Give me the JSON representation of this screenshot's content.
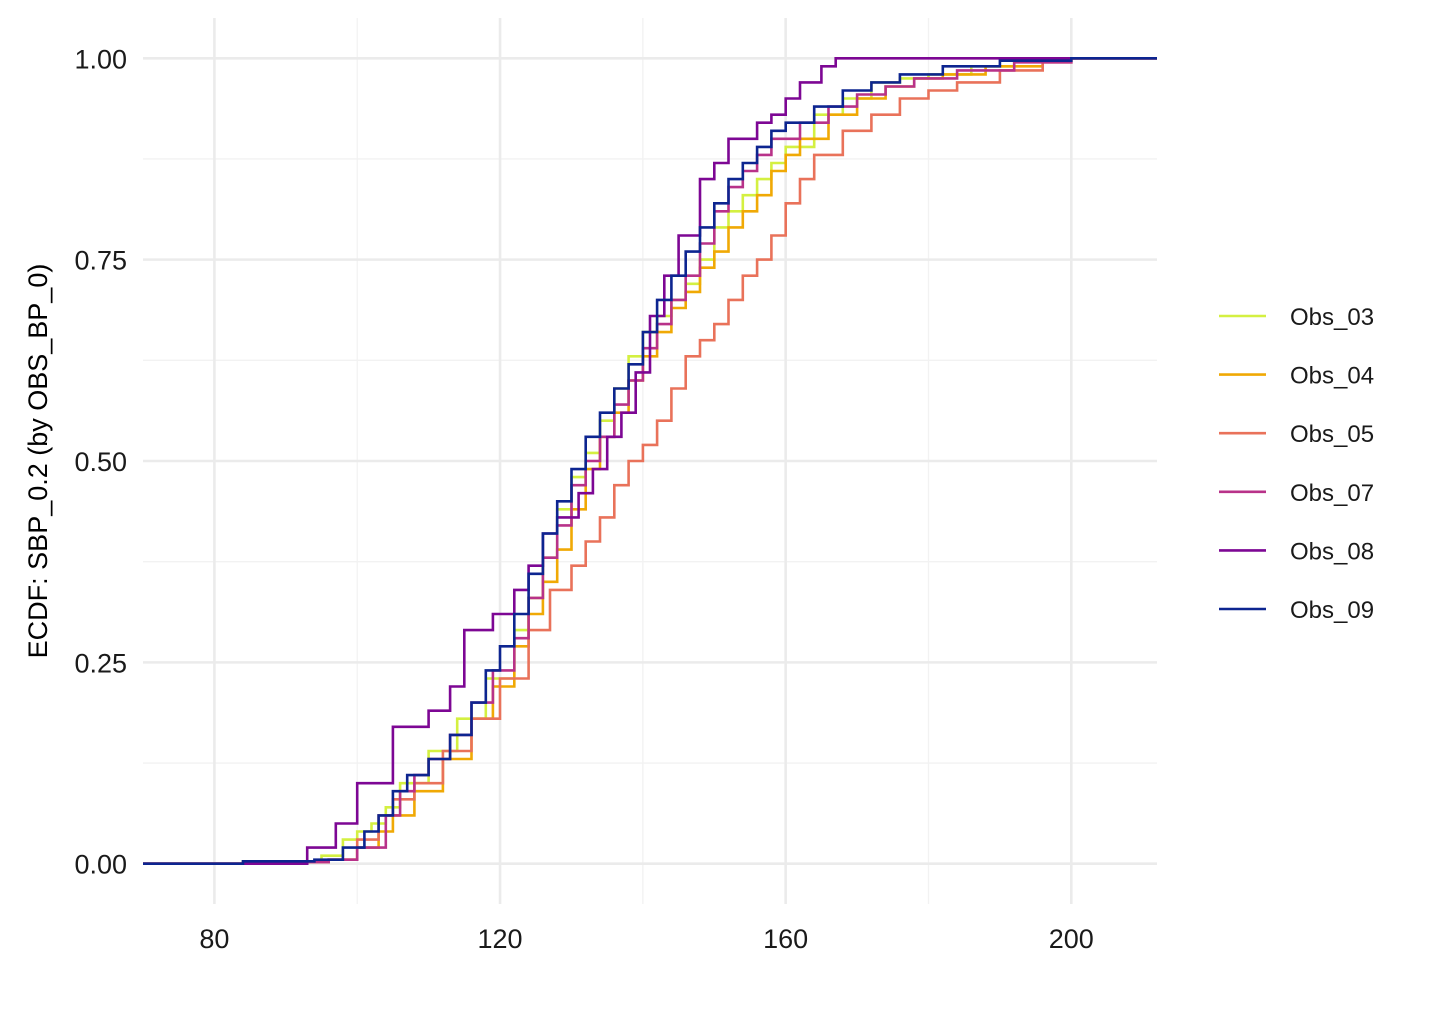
{
  "chart_data": {
    "type": "line",
    "step": true,
    "title": "",
    "xlabel": "",
    "ylabel": "ECDF: SBP_0.2 (by OBS_BP_0)",
    "xlim": [
      70,
      212
    ],
    "ylim": [
      -0.05,
      1.05
    ],
    "x_ticks": [
      80,
      120,
      160,
      200
    ],
    "y_ticks": [
      0,
      0.25,
      0.5,
      0.75,
      1
    ],
    "x_tick_labels": [
      "80",
      "120",
      "160",
      "200"
    ],
    "y_tick_labels": [
      "0.00",
      "0.25",
      "0.50",
      "0.75",
      "1.00"
    ],
    "grid": true,
    "legend_position": "right",
    "series": [
      {
        "name": "Obs_03",
        "color": "#d4f041",
        "points": [
          [
            70,
            0
          ],
          [
            84,
            0.003
          ],
          [
            95,
            0.01
          ],
          [
            98,
            0.03
          ],
          [
            100,
            0.04
          ],
          [
            102,
            0.05
          ],
          [
            104,
            0.07
          ],
          [
            106,
            0.1
          ],
          [
            110,
            0.14
          ],
          [
            114,
            0.18
          ],
          [
            118,
            0.23
          ],
          [
            122,
            0.29
          ],
          [
            124,
            0.33
          ],
          [
            126,
            0.38
          ],
          [
            128,
            0.44
          ],
          [
            130,
            0.48
          ],
          [
            132,
            0.51
          ],
          [
            134,
            0.55
          ],
          [
            136,
            0.59
          ],
          [
            138,
            0.63
          ],
          [
            140,
            0.66
          ],
          [
            142,
            0.68
          ],
          [
            144,
            0.7
          ],
          [
            146,
            0.72
          ],
          [
            148,
            0.75
          ],
          [
            150,
            0.79
          ],
          [
            152,
            0.81
          ],
          [
            154,
            0.83
          ],
          [
            156,
            0.85
          ],
          [
            158,
            0.87
          ],
          [
            160,
            0.89
          ],
          [
            164,
            0.93
          ],
          [
            168,
            0.95
          ],
          [
            172,
            0.97
          ],
          [
            176,
            0.975
          ],
          [
            180,
            0.98
          ],
          [
            186,
            0.99
          ],
          [
            192,
            0.997
          ],
          [
            198,
            1
          ],
          [
            212,
            1
          ]
        ]
      },
      {
        "name": "Obs_04",
        "color": "#f0a905",
        "points": [
          [
            70,
            0
          ],
          [
            85,
            0.002
          ],
          [
            96,
            0.005
          ],
          [
            100,
            0.02
          ],
          [
            103,
            0.04
          ],
          [
            105,
            0.06
          ],
          [
            108,
            0.09
          ],
          [
            112,
            0.13
          ],
          [
            116,
            0.18
          ],
          [
            119,
            0.22
          ],
          [
            122,
            0.27
          ],
          [
            124,
            0.31
          ],
          [
            126,
            0.35
          ],
          [
            128,
            0.39
          ],
          [
            130,
            0.44
          ],
          [
            132,
            0.49
          ],
          [
            134,
            0.53
          ],
          [
            136,
            0.56
          ],
          [
            138,
            0.6
          ],
          [
            140,
            0.63
          ],
          [
            142,
            0.66
          ],
          [
            144,
            0.69
          ],
          [
            146,
            0.71
          ],
          [
            148,
            0.74
          ],
          [
            150,
            0.76
          ],
          [
            152,
            0.79
          ],
          [
            154,
            0.81
          ],
          [
            156,
            0.83
          ],
          [
            158,
            0.86
          ],
          [
            160,
            0.88
          ],
          [
            162,
            0.9
          ],
          [
            166,
            0.93
          ],
          [
            170,
            0.95
          ],
          [
            174,
            0.965
          ],
          [
            178,
            0.975
          ],
          [
            182,
            0.98
          ],
          [
            188,
            0.99
          ],
          [
            196,
            0.997
          ],
          [
            200,
            1
          ],
          [
            212,
            1
          ]
        ]
      },
      {
        "name": "Obs_05",
        "color": "#e9725a",
        "points": [
          [
            70,
            0
          ],
          [
            84,
            0.002
          ],
          [
            96,
            0.005
          ],
          [
            100,
            0.03
          ],
          [
            103,
            0.06
          ],
          [
            105,
            0.08
          ],
          [
            108,
            0.1
          ],
          [
            112,
            0.14
          ],
          [
            116,
            0.18
          ],
          [
            120,
            0.23
          ],
          [
            124,
            0.29
          ],
          [
            127,
            0.34
          ],
          [
            130,
            0.37
          ],
          [
            132,
            0.4
          ],
          [
            134,
            0.43
          ],
          [
            136,
            0.47
          ],
          [
            138,
            0.5
          ],
          [
            140,
            0.52
          ],
          [
            142,
            0.55
          ],
          [
            144,
            0.59
          ],
          [
            146,
            0.63
          ],
          [
            148,
            0.65
          ],
          [
            150,
            0.67
          ],
          [
            152,
            0.7
          ],
          [
            154,
            0.73
          ],
          [
            156,
            0.75
          ],
          [
            158,
            0.78
          ],
          [
            160,
            0.82
          ],
          [
            162,
            0.85
          ],
          [
            164,
            0.88
          ],
          [
            168,
            0.91
          ],
          [
            172,
            0.93
          ],
          [
            176,
            0.95
          ],
          [
            180,
            0.96
          ],
          [
            184,
            0.97
          ],
          [
            190,
            0.985
          ],
          [
            196,
            0.995
          ],
          [
            200,
            1
          ],
          [
            212,
            1
          ]
        ]
      },
      {
        "name": "Obs_07",
        "color": "#b83289",
        "points": [
          [
            70,
            0
          ],
          [
            86,
            0.002
          ],
          [
            96,
            0.005
          ],
          [
            100,
            0.02
          ],
          [
            104,
            0.06
          ],
          [
            106,
            0.09
          ],
          [
            108,
            0.11
          ],
          [
            110,
            0.13
          ],
          [
            113,
            0.16
          ],
          [
            116,
            0.2
          ],
          [
            119,
            0.24
          ],
          [
            122,
            0.28
          ],
          [
            124,
            0.33
          ],
          [
            126,
            0.38
          ],
          [
            128,
            0.42
          ],
          [
            130,
            0.47
          ],
          [
            132,
            0.5
          ],
          [
            134,
            0.53
          ],
          [
            136,
            0.57
          ],
          [
            138,
            0.6
          ],
          [
            140,
            0.64
          ],
          [
            142,
            0.67
          ],
          [
            144,
            0.7
          ],
          [
            146,
            0.73
          ],
          [
            148,
            0.77
          ],
          [
            150,
            0.81
          ],
          [
            152,
            0.84
          ],
          [
            154,
            0.86
          ],
          [
            156,
            0.88
          ],
          [
            158,
            0.9
          ],
          [
            162,
            0.92
          ],
          [
            166,
            0.94
          ],
          [
            170,
            0.955
          ],
          [
            174,
            0.965
          ],
          [
            178,
            0.975
          ],
          [
            184,
            0.985
          ],
          [
            192,
            0.995
          ],
          [
            200,
            1
          ],
          [
            212,
            1
          ]
        ]
      },
      {
        "name": "Obs_08",
        "color": "#7d0794",
        "points": [
          [
            70,
            0
          ],
          [
            93,
            0.02
          ],
          [
            97,
            0.05
          ],
          [
            100,
            0.1
          ],
          [
            105,
            0.17
          ],
          [
            110,
            0.19
          ],
          [
            113,
            0.22
          ],
          [
            115,
            0.29
          ],
          [
            119,
            0.31
          ],
          [
            122,
            0.34
          ],
          [
            124,
            0.37
          ],
          [
            126,
            0.41
          ],
          [
            128,
            0.43
          ],
          [
            131,
            0.46
          ],
          [
            133,
            0.49
          ],
          [
            135,
            0.53
          ],
          [
            137,
            0.56
          ],
          [
            139,
            0.61
          ],
          [
            141,
            0.68
          ],
          [
            143,
            0.73
          ],
          [
            145,
            0.78
          ],
          [
            148,
            0.85
          ],
          [
            150,
            0.87
          ],
          [
            152,
            0.9
          ],
          [
            156,
            0.92
          ],
          [
            158,
            0.93
          ],
          [
            160,
            0.95
          ],
          [
            162,
            0.97
          ],
          [
            165,
            0.99
          ],
          [
            167,
            1
          ],
          [
            212,
            1
          ]
        ]
      },
      {
        "name": "Obs_09",
        "color": "#0d2590",
        "points": [
          [
            70,
            0
          ],
          [
            84,
            0.003
          ],
          [
            94,
            0.005
          ],
          [
            98,
            0.02
          ],
          [
            101,
            0.04
          ],
          [
            103,
            0.06
          ],
          [
            105,
            0.09
          ],
          [
            107,
            0.11
          ],
          [
            110,
            0.13
          ],
          [
            113,
            0.16
          ],
          [
            116,
            0.2
          ],
          [
            118,
            0.24
          ],
          [
            120,
            0.27
          ],
          [
            122,
            0.31
          ],
          [
            124,
            0.36
          ],
          [
            126,
            0.41
          ],
          [
            128,
            0.45
          ],
          [
            130,
            0.49
          ],
          [
            132,
            0.53
          ],
          [
            134,
            0.56
          ],
          [
            136,
            0.59
          ],
          [
            138,
            0.62
          ],
          [
            140,
            0.66
          ],
          [
            142,
            0.7
          ],
          [
            144,
            0.73
          ],
          [
            146,
            0.76
          ],
          [
            148,
            0.79
          ],
          [
            150,
            0.82
          ],
          [
            152,
            0.85
          ],
          [
            154,
            0.87
          ],
          [
            156,
            0.89
          ],
          [
            158,
            0.91
          ],
          [
            160,
            0.92
          ],
          [
            164,
            0.94
          ],
          [
            168,
            0.96
          ],
          [
            172,
            0.97
          ],
          [
            176,
            0.98
          ],
          [
            182,
            0.99
          ],
          [
            190,
            0.997
          ],
          [
            200,
            1
          ],
          [
            212,
            1
          ]
        ]
      }
    ]
  }
}
